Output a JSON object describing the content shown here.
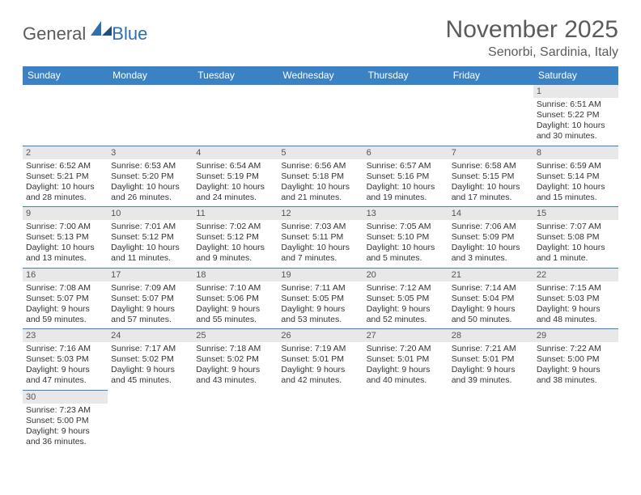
{
  "logo": {
    "text1": "General",
    "text2": "Blue"
  },
  "title": "November 2025",
  "location": "Senorbi, Sardinia, Italy",
  "header_bg": "#3b82c4",
  "header_fg": "#ffffff",
  "daynum_bg": "#e8e8e8",
  "border_color": "#3b82c4",
  "weekdays": [
    "Sunday",
    "Monday",
    "Tuesday",
    "Wednesday",
    "Thursday",
    "Friday",
    "Saturday"
  ],
  "weeks": [
    [
      {
        "n": "",
        "empty": true
      },
      {
        "n": "",
        "empty": true
      },
      {
        "n": "",
        "empty": true
      },
      {
        "n": "",
        "empty": true
      },
      {
        "n": "",
        "empty": true
      },
      {
        "n": "",
        "empty": true
      },
      {
        "n": "1",
        "sunrise": "Sunrise: 6:51 AM",
        "sunset": "Sunset: 5:22 PM",
        "daylight": "Daylight: 10 hours and 30 minutes."
      }
    ],
    [
      {
        "n": "2",
        "sunrise": "Sunrise: 6:52 AM",
        "sunset": "Sunset: 5:21 PM",
        "daylight": "Daylight: 10 hours and 28 minutes."
      },
      {
        "n": "3",
        "sunrise": "Sunrise: 6:53 AM",
        "sunset": "Sunset: 5:20 PM",
        "daylight": "Daylight: 10 hours and 26 minutes."
      },
      {
        "n": "4",
        "sunrise": "Sunrise: 6:54 AM",
        "sunset": "Sunset: 5:19 PM",
        "daylight": "Daylight: 10 hours and 24 minutes."
      },
      {
        "n": "5",
        "sunrise": "Sunrise: 6:56 AM",
        "sunset": "Sunset: 5:18 PM",
        "daylight": "Daylight: 10 hours and 21 minutes."
      },
      {
        "n": "6",
        "sunrise": "Sunrise: 6:57 AM",
        "sunset": "Sunset: 5:16 PM",
        "daylight": "Daylight: 10 hours and 19 minutes."
      },
      {
        "n": "7",
        "sunrise": "Sunrise: 6:58 AM",
        "sunset": "Sunset: 5:15 PM",
        "daylight": "Daylight: 10 hours and 17 minutes."
      },
      {
        "n": "8",
        "sunrise": "Sunrise: 6:59 AM",
        "sunset": "Sunset: 5:14 PM",
        "daylight": "Daylight: 10 hours and 15 minutes."
      }
    ],
    [
      {
        "n": "9",
        "sunrise": "Sunrise: 7:00 AM",
        "sunset": "Sunset: 5:13 PM",
        "daylight": "Daylight: 10 hours and 13 minutes."
      },
      {
        "n": "10",
        "sunrise": "Sunrise: 7:01 AM",
        "sunset": "Sunset: 5:12 PM",
        "daylight": "Daylight: 10 hours and 11 minutes."
      },
      {
        "n": "11",
        "sunrise": "Sunrise: 7:02 AM",
        "sunset": "Sunset: 5:12 PM",
        "daylight": "Daylight: 10 hours and 9 minutes."
      },
      {
        "n": "12",
        "sunrise": "Sunrise: 7:03 AM",
        "sunset": "Sunset: 5:11 PM",
        "daylight": "Daylight: 10 hours and 7 minutes."
      },
      {
        "n": "13",
        "sunrise": "Sunrise: 7:05 AM",
        "sunset": "Sunset: 5:10 PM",
        "daylight": "Daylight: 10 hours and 5 minutes."
      },
      {
        "n": "14",
        "sunrise": "Sunrise: 7:06 AM",
        "sunset": "Sunset: 5:09 PM",
        "daylight": "Daylight: 10 hours and 3 minutes."
      },
      {
        "n": "15",
        "sunrise": "Sunrise: 7:07 AM",
        "sunset": "Sunset: 5:08 PM",
        "daylight": "Daylight: 10 hours and 1 minute."
      }
    ],
    [
      {
        "n": "16",
        "sunrise": "Sunrise: 7:08 AM",
        "sunset": "Sunset: 5:07 PM",
        "daylight": "Daylight: 9 hours and 59 minutes."
      },
      {
        "n": "17",
        "sunrise": "Sunrise: 7:09 AM",
        "sunset": "Sunset: 5:07 PM",
        "daylight": "Daylight: 9 hours and 57 minutes."
      },
      {
        "n": "18",
        "sunrise": "Sunrise: 7:10 AM",
        "sunset": "Sunset: 5:06 PM",
        "daylight": "Daylight: 9 hours and 55 minutes."
      },
      {
        "n": "19",
        "sunrise": "Sunrise: 7:11 AM",
        "sunset": "Sunset: 5:05 PM",
        "daylight": "Daylight: 9 hours and 53 minutes."
      },
      {
        "n": "20",
        "sunrise": "Sunrise: 7:12 AM",
        "sunset": "Sunset: 5:05 PM",
        "daylight": "Daylight: 9 hours and 52 minutes."
      },
      {
        "n": "21",
        "sunrise": "Sunrise: 7:14 AM",
        "sunset": "Sunset: 5:04 PM",
        "daylight": "Daylight: 9 hours and 50 minutes."
      },
      {
        "n": "22",
        "sunrise": "Sunrise: 7:15 AM",
        "sunset": "Sunset: 5:03 PM",
        "daylight": "Daylight: 9 hours and 48 minutes."
      }
    ],
    [
      {
        "n": "23",
        "sunrise": "Sunrise: 7:16 AM",
        "sunset": "Sunset: 5:03 PM",
        "daylight": "Daylight: 9 hours and 47 minutes."
      },
      {
        "n": "24",
        "sunrise": "Sunrise: 7:17 AM",
        "sunset": "Sunset: 5:02 PM",
        "daylight": "Daylight: 9 hours and 45 minutes."
      },
      {
        "n": "25",
        "sunrise": "Sunrise: 7:18 AM",
        "sunset": "Sunset: 5:02 PM",
        "daylight": "Daylight: 9 hours and 43 minutes."
      },
      {
        "n": "26",
        "sunrise": "Sunrise: 7:19 AM",
        "sunset": "Sunset: 5:01 PM",
        "daylight": "Daylight: 9 hours and 42 minutes."
      },
      {
        "n": "27",
        "sunrise": "Sunrise: 7:20 AM",
        "sunset": "Sunset: 5:01 PM",
        "daylight": "Daylight: 9 hours and 40 minutes."
      },
      {
        "n": "28",
        "sunrise": "Sunrise: 7:21 AM",
        "sunset": "Sunset: 5:01 PM",
        "daylight": "Daylight: 9 hours and 39 minutes."
      },
      {
        "n": "29",
        "sunrise": "Sunrise: 7:22 AM",
        "sunset": "Sunset: 5:00 PM",
        "daylight": "Daylight: 9 hours and 38 minutes."
      }
    ],
    [
      {
        "n": "30",
        "sunrise": "Sunrise: 7:23 AM",
        "sunset": "Sunset: 5:00 PM",
        "daylight": "Daylight: 9 hours and 36 minutes."
      },
      {
        "n": "",
        "empty": true
      },
      {
        "n": "",
        "empty": true
      },
      {
        "n": "",
        "empty": true
      },
      {
        "n": "",
        "empty": true
      },
      {
        "n": "",
        "empty": true
      },
      {
        "n": "",
        "empty": true
      }
    ]
  ]
}
